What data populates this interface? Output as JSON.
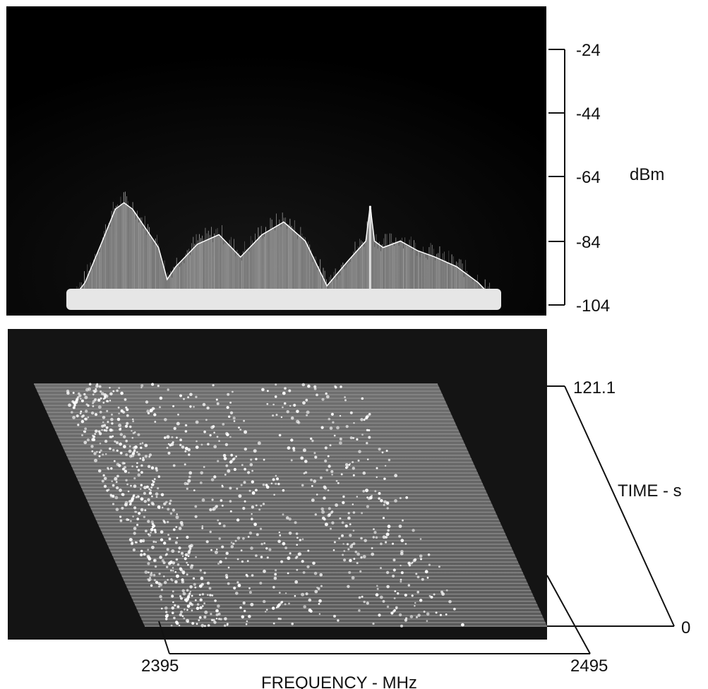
{
  "chart_data": [
    {
      "type": "area",
      "ylabel": "dBm",
      "y_ticks": [
        "-24",
        "-44",
        "-64",
        "-84",
        "-104"
      ],
      "ylim": [
        -104,
        -24
      ],
      "x_range_mhz": [
        2395,
        2495
      ],
      "background": "#050505",
      "trace_color": "#f2f2f2",
      "peak_envelope": {
        "x": [
          2395,
          2399,
          2403,
          2406,
          2408,
          2410,
          2413,
          2416,
          2418,
          2420,
          2425,
          2430,
          2435,
          2440,
          2445,
          2450,
          2455,
          2460,
          2464,
          2465,
          2466,
          2468,
          2472,
          2476,
          2480,
          2485,
          2490,
          2495
        ],
        "y": [
          -104,
          -97,
          -84,
          -74,
          -72,
          -74,
          -80,
          -86,
          -96,
          -92,
          -85,
          -82,
          -89,
          -82,
          -78,
          -84,
          -98,
          -90,
          -84,
          -73,
          -84,
          -86,
          -84,
          -87,
          -89,
          -92,
          -97,
          -104
        ]
      },
      "noise_floor_dbm": -104
    },
    {
      "type": "heatmap",
      "zlabel": "TIME - s",
      "xlabel": "FREQUENCY - MHz",
      "x_ticks": [
        "2395",
        "2495"
      ],
      "z_ticks": [
        "121.1",
        "0"
      ],
      "xlim": [
        2395,
        2495
      ],
      "zlim": [
        0,
        121.1
      ],
      "background": "#141414",
      "plane_color": "#8a8a8a",
      "burst_color": "#ffffff",
      "trace_count": 68,
      "bursts": [
        {
          "f_start": 2401,
          "f_end": 2416,
          "t_start": 0,
          "t_end": 121.1
        },
        {
          "f_start": 2420,
          "f_end": 2445,
          "t_start": 0,
          "t_end": 121.1
        },
        {
          "f_start": 2450,
          "f_end": 2475,
          "t_start": 0,
          "t_end": 121.1
        }
      ]
    }
  ]
}
